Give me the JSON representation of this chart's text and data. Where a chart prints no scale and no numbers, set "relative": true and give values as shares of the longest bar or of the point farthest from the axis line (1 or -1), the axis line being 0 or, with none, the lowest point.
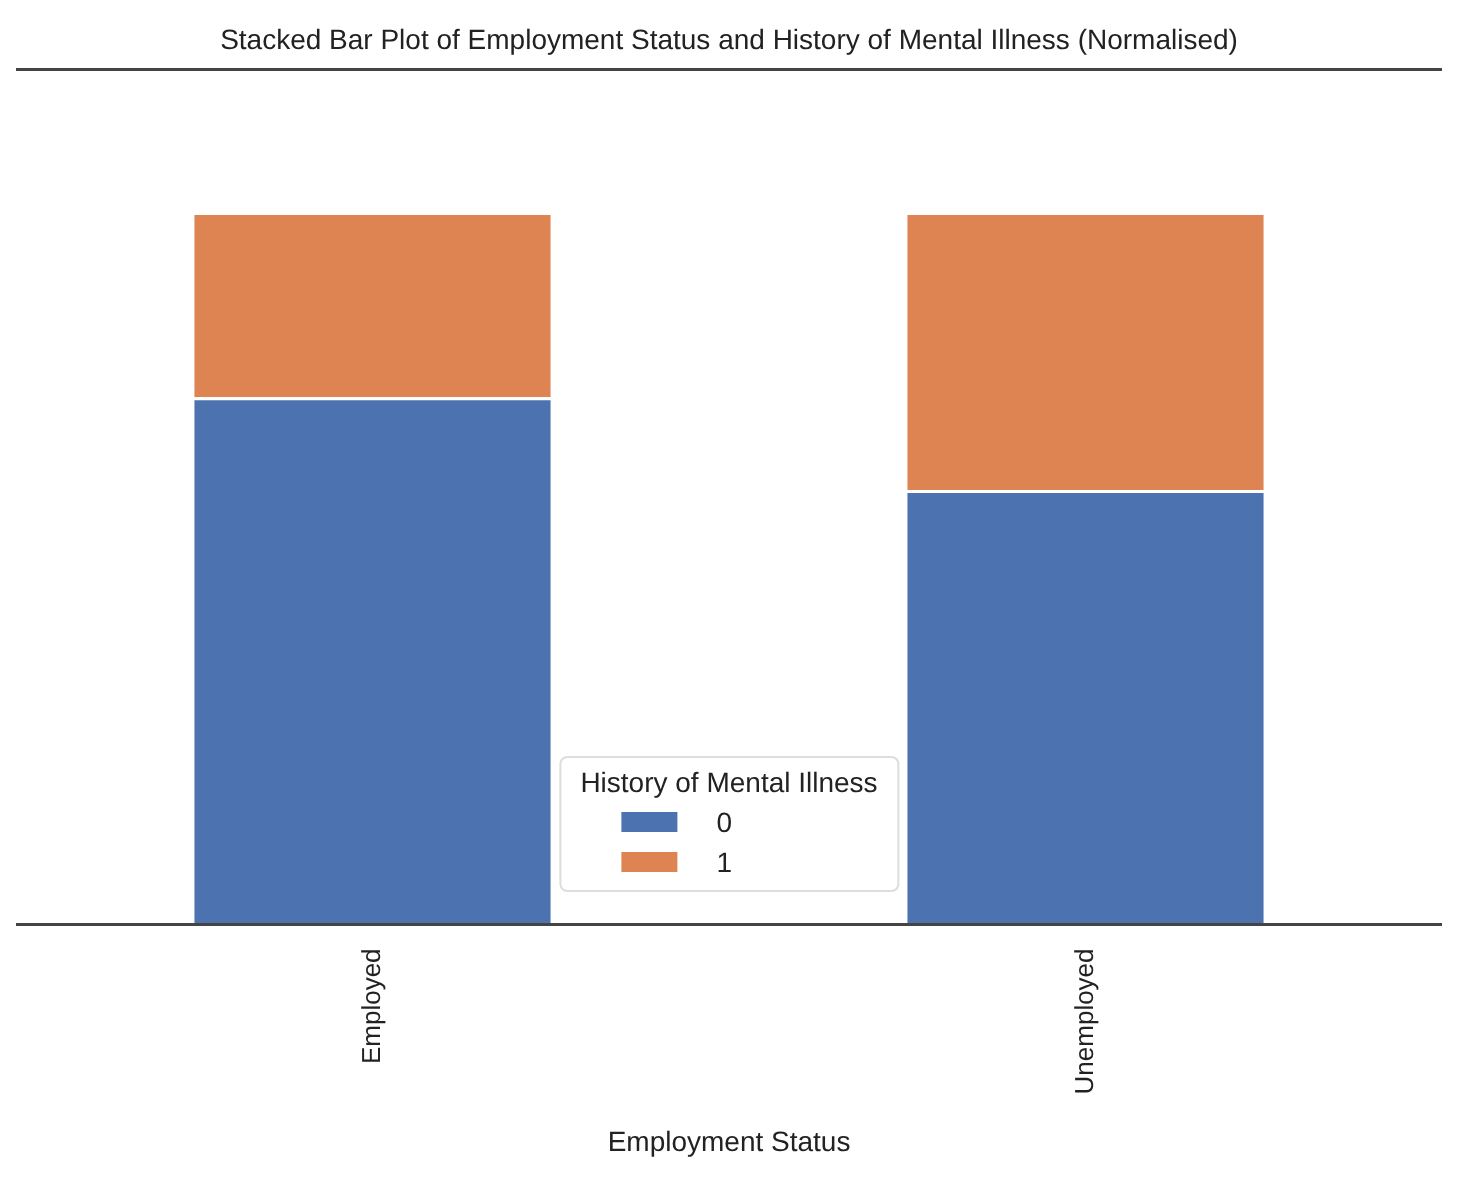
{
  "chart_data": {
    "type": "bar",
    "title": "Stacked Bar Plot of Employment Status and History of Mental Illness (Normalised)",
    "xlabel": "Employment Status",
    "legend_title": "History of Mental Illness",
    "categories": [
      "Employed",
      "Unemployed"
    ],
    "stacked": true,
    "relative": true,
    "legend": "bottom",
    "grid": false,
    "series": [
      {
        "name": "0",
        "color": "#4c72b0",
        "values": [
          0.74,
          0.61
        ]
      },
      {
        "name": "1",
        "color": "#dd8452",
        "values": [
          0.26,
          0.39
        ]
      }
    ]
  }
}
